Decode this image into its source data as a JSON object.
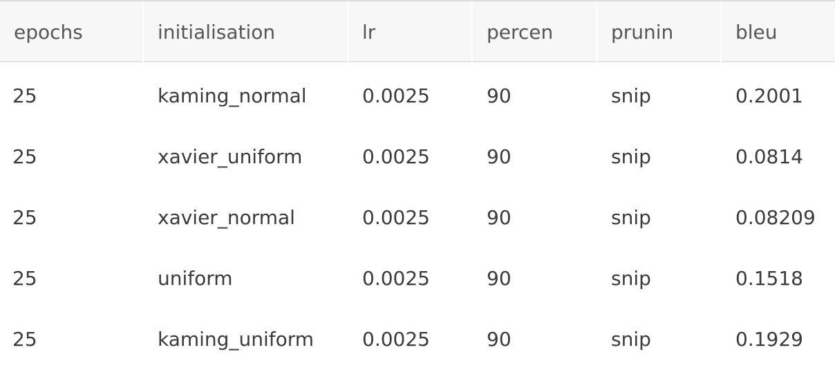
{
  "table": {
    "columns": [
      "epochs",
      "initialisation",
      "lr",
      "percen",
      "prunin",
      "bleu"
    ],
    "rows": [
      [
        "25",
        "kaming_normal",
        "0.0025",
        "90",
        "snip",
        "0.2001"
      ],
      [
        "25",
        "xavier_uniform",
        "0.0025",
        "90",
        "snip",
        "0.0814"
      ],
      [
        "25",
        "xavier_normal",
        "0.0025",
        "90",
        "snip",
        "0.08209"
      ],
      [
        "25",
        "uniform",
        "0.0025",
        "90",
        "snip",
        "0.1518"
      ],
      [
        "25",
        "kaming_uniform",
        "0.0025",
        "90",
        "snip",
        "0.1929"
      ]
    ]
  }
}
